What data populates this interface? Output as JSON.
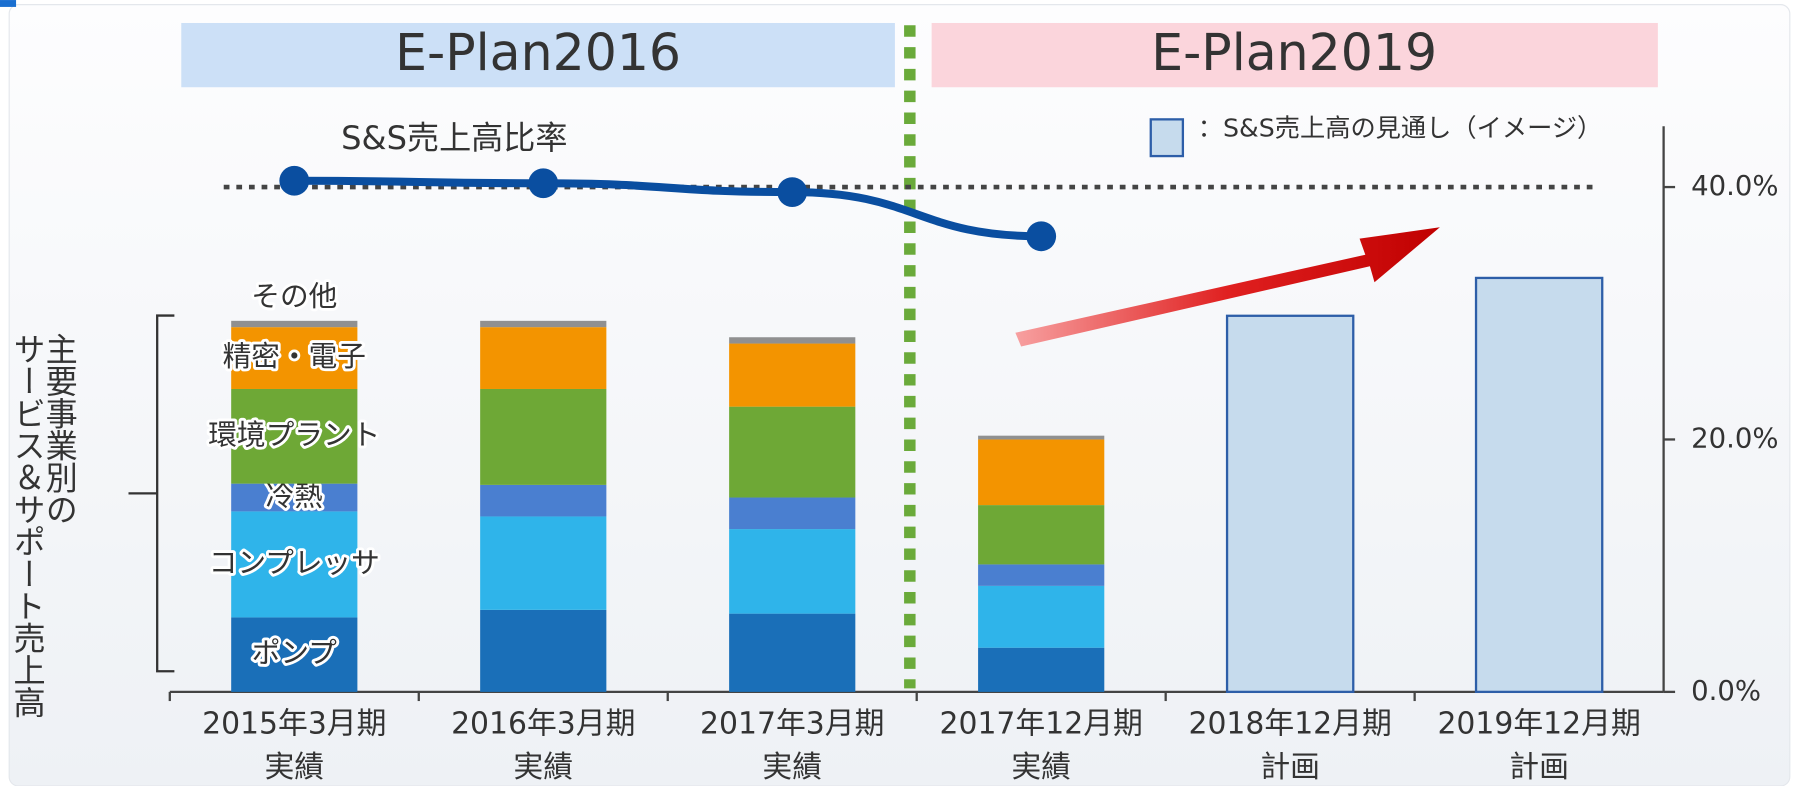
{
  "chart_data": {
    "type": "bar",
    "stacked": true,
    "banners": [
      "E-Plan2016",
      "E-Plan2019"
    ],
    "line_title": "S&S売上高比率",
    "ylabel": [
      "主要事業別の",
      "サービス＆サポート売上高"
    ],
    "categories": [
      [
        "2015年3月期",
        "実績"
      ],
      [
        "2016年3月期",
        "実績"
      ],
      [
        "2017年3月期",
        "実績"
      ],
      [
        "2017年12月期",
        "実績"
      ],
      [
        "2018年12月期",
        "計画"
      ],
      [
        "2019年12月期",
        "計画"
      ]
    ],
    "series": [
      {
        "name": "ポンプ",
        "color": "#1a6fb8",
        "values": [
          5.9,
          6.5,
          6.2,
          3.5,
          null,
          null
        ]
      },
      {
        "name": "コンプレッサ",
        "color": "#2fb4ea",
        "values": [
          8.4,
          7.4,
          6.7,
          4.9,
          null,
          null
        ]
      },
      {
        "name": "冷熱",
        "color": "#4a7fd0",
        "values": [
          2.2,
          2.5,
          2.5,
          1.7,
          null,
          null
        ]
      },
      {
        "name": "環境プラント",
        "color": "#6ea836",
        "values": [
          7.5,
          7.6,
          7.2,
          4.7,
          null,
          null
        ]
      },
      {
        "name": "精密・電子",
        "color": "#f39400",
        "values": [
          4.9,
          4.9,
          5.0,
          5.2,
          null,
          null
        ]
      },
      {
        "name": "その他",
        "color": "#909090",
        "values": [
          0.5,
          0.5,
          0.5,
          0.3,
          null,
          null
        ]
      },
      {
        "name": "：S&S売上高の見通し（イメージ）",
        "color": "#c6dbed",
        "values": [
          null,
          null,
          null,
          null,
          29.8,
          32.8
        ]
      },
      {
        "name": "S&S売上高比率",
        "color": "#0a4ea0",
        "type": "line",
        "axis": "y2",
        "values": [
          40.5,
          40.3,
          39.6,
          36.1,
          null,
          null
        ]
      }
    ],
    "ylim": [
      0,
      40
    ],
    "y2lim": [
      0,
      40
    ],
    "y2ticks": [
      {
        "value": 0,
        "label": "0.0%"
      },
      {
        "value": 20,
        "label": "20.0%"
      },
      {
        "value": 40,
        "label": "40.0%"
      }
    ],
    "target_line": 40
  }
}
